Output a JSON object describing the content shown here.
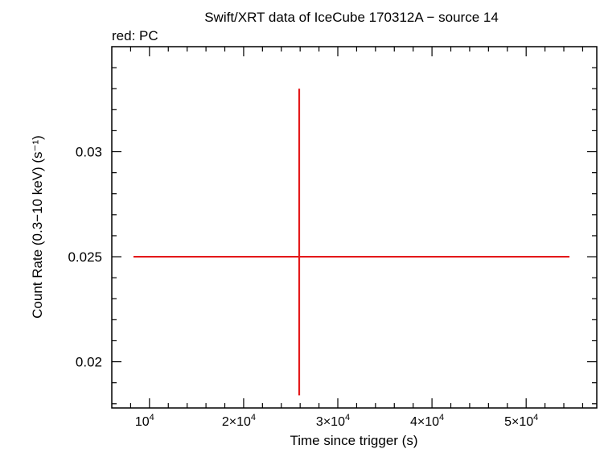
{
  "chart_data": {
    "type": "scatter",
    "title": "Swift/XRT data of IceCube 170312A − source 14",
    "subtitle": "red: PC",
    "xlabel": "Time since trigger (s)",
    "ylabel": "Count Rate (0.3−10 keV) (s⁻¹)",
    "xlim": [
      6000,
      57500
    ],
    "ylim": [
      0.0178,
      0.035
    ],
    "x_ticks": [
      {
        "value": 10000,
        "mantissa": "",
        "exp": "4"
      },
      {
        "value": 20000,
        "mantissa": "2×10",
        "exp": "4"
      },
      {
        "value": 30000,
        "mantissa": "3×10",
        "exp": "4"
      },
      {
        "value": 40000,
        "mantissa": "4×10",
        "exp": "4"
      },
      {
        "value": 50000,
        "mantissa": "5×10",
        "exp": "4"
      }
    ],
    "y_ticks": [
      {
        "value": 0.02,
        "label": "0.02"
      },
      {
        "value": 0.025,
        "label": "0.025"
      },
      {
        "value": 0.03,
        "label": "0.03"
      }
    ],
    "series": [
      {
        "color": "#e41a1c",
        "points": [
          {
            "x": 25900,
            "x_err_low": 17600,
            "x_err_high": 28700,
            "y": 0.025,
            "y_err_low": 0.0066,
            "y_err_high": 0.008
          }
        ]
      }
    ],
    "grid": false,
    "legend": "none"
  }
}
